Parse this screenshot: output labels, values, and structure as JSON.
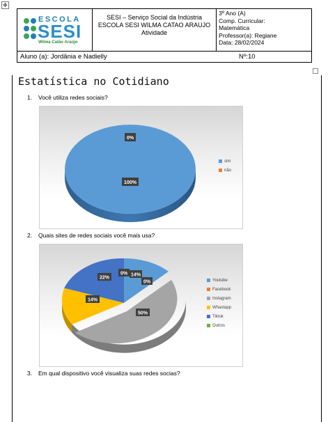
{
  "header": {
    "logo": {
      "escola": "ESCOLA",
      "sesi": "SESI",
      "subtitle": "Wilma Catão Araújo"
    },
    "center": {
      "line1": "SESI – Serviço Social da Indústria",
      "line2": "ESCOLA SESI WILMA CATAO ARAUJO",
      "line3": "Atividade"
    },
    "right": {
      "ano": "3º Ano (A)",
      "comp1": "Comp. Curricular:",
      "comp2": "Matemática",
      "professor": "Professor(a): Regiane",
      "data": "Data: 28/02/2024"
    },
    "aluno": "Aluno (a): Jordânia e Nadielly",
    "numero": "Nº:10"
  },
  "title": "Estatística no Cotidiano",
  "questions": [
    {
      "num": "1.",
      "text": "Você utiliza redes sociais?"
    },
    {
      "num": "2.",
      "text": "Quais sites de redes sociais você mais usa?"
    },
    {
      "num": "3.",
      "text": "Em qual dispositivo você visualiza suas redes socias?"
    }
  ],
  "colors": {
    "blue": "#5b9bd5",
    "orange": "#ed7d31",
    "gray": "#a5a5a5",
    "yellow": "#ffc000",
    "darkblue": "#4472c4",
    "green": "#70ad47"
  },
  "chart_data": [
    {
      "type": "pie",
      "categories": [
        "sim",
        "não"
      ],
      "values": [
        100,
        0
      ],
      "data_labels": [
        "100%",
        "0%"
      ],
      "colors": [
        "#5b9bd5",
        "#ed7d31"
      ],
      "legend": "right"
    },
    {
      "type": "pie",
      "categories": [
        "Youtube",
        "Facebook",
        "Instagram",
        "Whastapp",
        "Tiktok",
        "Outros"
      ],
      "values": [
        14,
        0,
        50,
        14,
        22,
        0
      ],
      "data_labels": [
        "14%",
        "0%",
        "50%",
        "14%",
        "22%",
        "0%"
      ],
      "colors": [
        "#5b9bd5",
        "#ed7d31",
        "#a5a5a5",
        "#ffc000",
        "#4472c4",
        "#70ad47"
      ],
      "legend": "right"
    }
  ]
}
